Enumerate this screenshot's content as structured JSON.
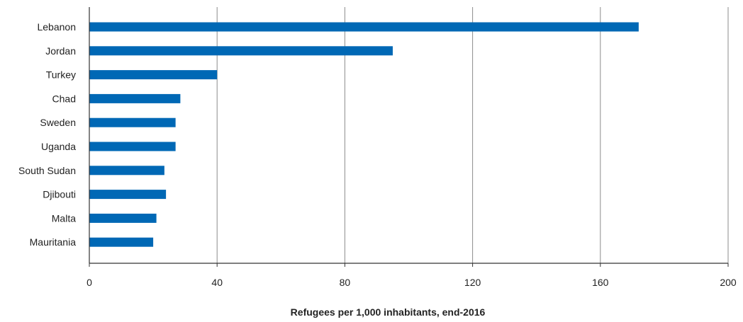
{
  "chart_data": {
    "type": "bar",
    "orientation": "horizontal",
    "categories": [
      "Lebanon",
      "Jordan",
      "Turkey",
      "Chad",
      "Sweden",
      "Uganda",
      "South Sudan",
      "Djibouti",
      "Malta",
      "Mauritania"
    ],
    "values": [
      172,
      95,
      40,
      28.5,
      27,
      27,
      23.5,
      24,
      21,
      20
    ],
    "xlabel": "Refugees per 1,000 inhabitants, end-2016",
    "xlim": [
      0,
      200
    ],
    "xticks": [
      "0",
      "40",
      "80",
      "120",
      "160",
      "200"
    ],
    "grid": "vertical",
    "bar_color": "#0068b5",
    "grid_color": "#8c8c8c",
    "axis_color": "#333333"
  }
}
